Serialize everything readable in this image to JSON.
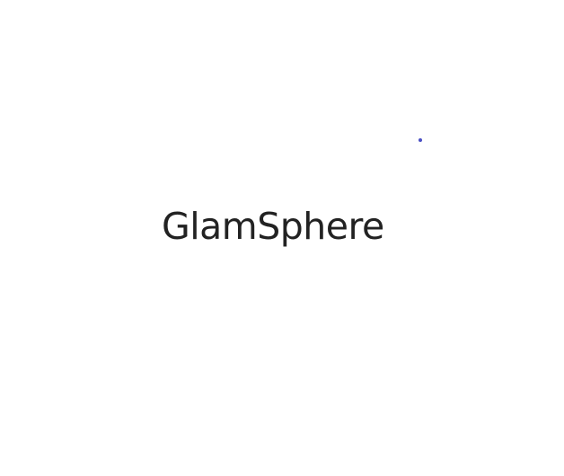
{
  "app": {
    "name": "GlamSphere"
  },
  "colors": {
    "background": "#ffffff",
    "text": "#222222",
    "accent_dot": "#4a4fc4"
  },
  "icons": {
    "loading_indicator": "loading-dot-icon"
  }
}
